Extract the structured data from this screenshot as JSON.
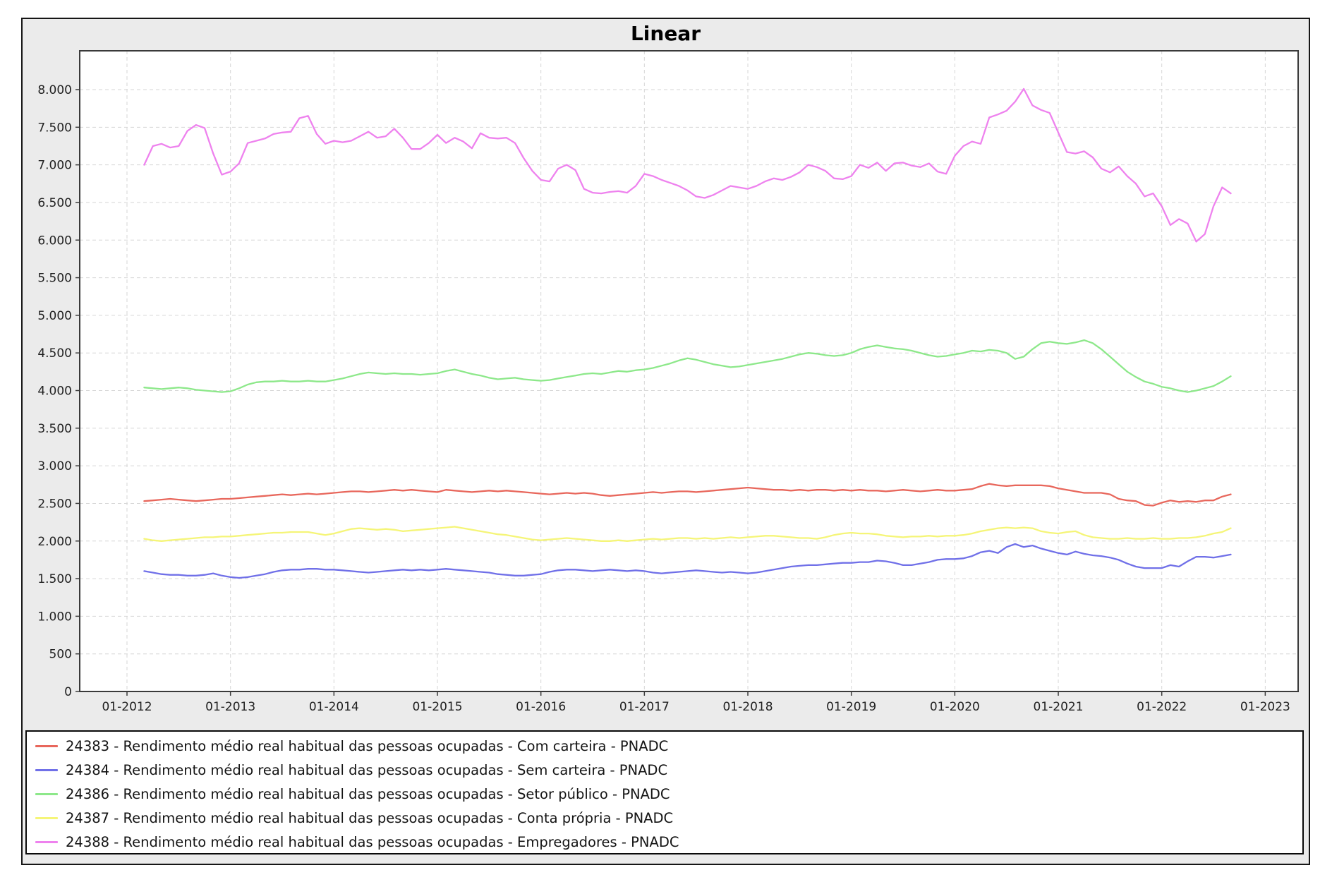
{
  "title": "Linear",
  "colors": {
    "red": "#e8675c",
    "blue": "#7070e8",
    "green": "#8de88a",
    "yellow": "#f5f578",
    "magenta": "#ee82ee",
    "grid": "#d6d6d6",
    "spine": "#3a3a3a",
    "figure_bg": "#ebebeb",
    "plot_bg": "#ffffff",
    "tick_text": "#222222"
  },
  "axes": {
    "y_ticks": [
      {
        "value": 0,
        "label": "0"
      },
      {
        "value": 500,
        "label": "500"
      },
      {
        "value": 1000,
        "label": "1.000"
      },
      {
        "value": 1500,
        "label": "1.500"
      },
      {
        "value": 2000,
        "label": "2.000"
      },
      {
        "value": 2500,
        "label": "2.500"
      },
      {
        "value": 3000,
        "label": "3.000"
      },
      {
        "value": 3500,
        "label": "3.500"
      },
      {
        "value": 4000,
        "label": "4.000"
      },
      {
        "value": 4500,
        "label": "4.500"
      },
      {
        "value": 5000,
        "label": "5.000"
      },
      {
        "value": 5500,
        "label": "5.500"
      },
      {
        "value": 6000,
        "label": "6.000"
      },
      {
        "value": 6500,
        "label": "6.500"
      },
      {
        "value": 7000,
        "label": "7.000"
      },
      {
        "value": 7500,
        "label": "7.500"
      },
      {
        "value": 8000,
        "label": "8.000"
      }
    ],
    "x_ticks": [
      {
        "label": "01-2012"
      },
      {
        "label": "01-2013"
      },
      {
        "label": "01-2014"
      },
      {
        "label": "01-2015"
      },
      {
        "label": "01-2016"
      },
      {
        "label": "01-2017"
      },
      {
        "label": "01-2018"
      },
      {
        "label": "01-2019"
      },
      {
        "label": "01-2020"
      },
      {
        "label": "01-2021"
      },
      {
        "label": "01-2022"
      },
      {
        "label": "01-2023"
      }
    ]
  },
  "legend": {
    "items": [
      {
        "id": "24383",
        "color": "red",
        "label": "24383 - Rendimento médio real habitual das pessoas ocupadas - Com carteira - PNADC"
      },
      {
        "id": "24384",
        "color": "blue",
        "label": "24384 - Rendimento médio real habitual das pessoas ocupadas - Sem carteira - PNADC"
      },
      {
        "id": "24386",
        "color": "green",
        "label": "24386 - Rendimento médio real habitual das pessoas ocupadas - Setor público - PNADC"
      },
      {
        "id": "24387",
        "color": "yellow",
        "label": "24387 - Rendimento médio real habitual das pessoas ocupadas - Conta própria - PNADC"
      },
      {
        "id": "24388",
        "color": "magenta",
        "label": "24388 - Rendimento médio real habitual das pessoas ocupadas - Empregadores - PNADC"
      }
    ]
  },
  "chart_data": {
    "type": "line",
    "title": "Linear",
    "xlabel": "",
    "ylabel": "",
    "ylim": [
      0,
      8500
    ],
    "grid": true,
    "legend_position": "bottom",
    "frequency": "monthly",
    "x": [
      "2012-03",
      "2012-04",
      "2012-05",
      "2012-06",
      "2012-07",
      "2012-08",
      "2012-09",
      "2012-10",
      "2012-11",
      "2012-12",
      "2013-01",
      "2013-02",
      "2013-03",
      "2013-04",
      "2013-05",
      "2013-06",
      "2013-07",
      "2013-08",
      "2013-09",
      "2013-10",
      "2013-11",
      "2013-12",
      "2014-01",
      "2014-02",
      "2014-03",
      "2014-04",
      "2014-05",
      "2014-06",
      "2014-07",
      "2014-08",
      "2014-09",
      "2014-10",
      "2014-11",
      "2014-12",
      "2015-01",
      "2015-02",
      "2015-03",
      "2015-04",
      "2015-05",
      "2015-06",
      "2015-07",
      "2015-08",
      "2015-09",
      "2015-10",
      "2015-11",
      "2015-12",
      "2016-01",
      "2016-02",
      "2016-03",
      "2016-04",
      "2016-05",
      "2016-06",
      "2016-07",
      "2016-08",
      "2016-09",
      "2016-10",
      "2016-11",
      "2016-12",
      "2017-01",
      "2017-02",
      "2017-03",
      "2017-04",
      "2017-05",
      "2017-06",
      "2017-07",
      "2017-08",
      "2017-09",
      "2017-10",
      "2017-11",
      "2017-12",
      "2018-01",
      "2018-02",
      "2018-03",
      "2018-04",
      "2018-05",
      "2018-06",
      "2018-07",
      "2018-08",
      "2018-09",
      "2018-10",
      "2018-11",
      "2018-12",
      "2019-01",
      "2019-02",
      "2019-03",
      "2019-04",
      "2019-05",
      "2019-06",
      "2019-07",
      "2019-08",
      "2019-09",
      "2019-10",
      "2019-11",
      "2019-12",
      "2020-01",
      "2020-02",
      "2020-03",
      "2020-04",
      "2020-05",
      "2020-06",
      "2020-07",
      "2020-08",
      "2020-09",
      "2020-10",
      "2020-11",
      "2020-12",
      "2021-01",
      "2021-02",
      "2021-03",
      "2021-04",
      "2021-05",
      "2021-06",
      "2021-07",
      "2021-08",
      "2021-09",
      "2021-10",
      "2021-11",
      "2021-12",
      "2022-01",
      "2022-02",
      "2022-03",
      "2022-04",
      "2022-05",
      "2022-06",
      "2022-07",
      "2022-08",
      "2022-09"
    ],
    "series": [
      {
        "name": "24383 - Com carteira",
        "color": "red",
        "values": [
          2530,
          2540,
          2550,
          2560,
          2550,
          2540,
          2530,
          2540,
          2550,
          2560,
          2560,
          2570,
          2580,
          2590,
          2600,
          2610,
          2620,
          2610,
          2620,
          2630,
          2620,
          2630,
          2640,
          2650,
          2660,
          2660,
          2650,
          2660,
          2670,
          2680,
          2670,
          2680,
          2670,
          2660,
          2650,
          2680,
          2670,
          2660,
          2650,
          2660,
          2670,
          2660,
          2670,
          2660,
          2650,
          2640,
          2630,
          2620,
          2630,
          2640,
          2630,
          2640,
          2630,
          2610,
          2600,
          2610,
          2620,
          2630,
          2640,
          2650,
          2640,
          2650,
          2660,
          2660,
          2650,
          2660,
          2670,
          2680,
          2690,
          2700,
          2710,
          2700,
          2690,
          2680,
          2680,
          2670,
          2680,
          2670,
          2680,
          2680,
          2670,
          2680,
          2670,
          2680,
          2670,
          2670,
          2660,
          2670,
          2680,
          2670,
          2660,
          2670,
          2680,
          2670,
          2670,
          2680,
          2690,
          2730,
          2760,
          2740,
          2730,
          2740,
          2740,
          2740,
          2740,
          2730,
          2700,
          2680,
          2660,
          2640,
          2640,
          2640,
          2620,
          2560,
          2540,
          2530,
          2480,
          2470,
          2510,
          2540,
          2520,
          2530,
          2520,
          2540,
          2540,
          2590,
          2620
        ]
      },
      {
        "name": "24384 - Sem carteira",
        "color": "blue",
        "values": [
          1600,
          1580,
          1560,
          1550,
          1550,
          1540,
          1540,
          1550,
          1570,
          1540,
          1520,
          1510,
          1520,
          1540,
          1560,
          1590,
          1610,
          1620,
          1620,
          1630,
          1630,
          1620,
          1620,
          1610,
          1600,
          1590,
          1580,
          1590,
          1600,
          1610,
          1620,
          1610,
          1620,
          1610,
          1620,
          1630,
          1620,
          1610,
          1600,
          1590,
          1580,
          1560,
          1550,
          1540,
          1540,
          1550,
          1560,
          1590,
          1610,
          1620,
          1620,
          1610,
          1600,
          1610,
          1620,
          1610,
          1600,
          1610,
          1600,
          1580,
          1570,
          1580,
          1590,
          1600,
          1610,
          1600,
          1590,
          1580,
          1590,
          1580,
          1570,
          1580,
          1600,
          1620,
          1640,
          1660,
          1670,
          1680,
          1680,
          1690,
          1700,
          1710,
          1710,
          1720,
          1720,
          1740,
          1730,
          1710,
          1680,
          1680,
          1700,
          1720,
          1750,
          1760,
          1760,
          1770,
          1800,
          1850,
          1870,
          1840,
          1920,
          1960,
          1920,
          1940,
          1900,
          1870,
          1840,
          1820,
          1860,
          1830,
          1810,
          1800,
          1780,
          1750,
          1700,
          1660,
          1640,
          1640,
          1640,
          1680,
          1660,
          1730,
          1790,
          1790,
          1780,
          1800,
          1820
        ]
      },
      {
        "name": "24386 - Setor público",
        "color": "green",
        "values": [
          4040,
          4030,
          4020,
          4030,
          4040,
          4030,
          4010,
          4000,
          3990,
          3980,
          3990,
          4030,
          4080,
          4110,
          4120,
          4120,
          4130,
          4120,
          4120,
          4130,
          4120,
          4120,
          4140,
          4160,
          4190,
          4220,
          4240,
          4230,
          4220,
          4230,
          4220,
          4220,
          4210,
          4220,
          4230,
          4260,
          4280,
          4250,
          4220,
          4200,
          4170,
          4150,
          4160,
          4170,
          4150,
          4140,
          4130,
          4140,
          4160,
          4180,
          4200,
          4220,
          4230,
          4220,
          4240,
          4260,
          4250,
          4270,
          4280,
          4300,
          4330,
          4360,
          4400,
          4430,
          4410,
          4380,
          4350,
          4330,
          4310,
          4320,
          4340,
          4360,
          4380,
          4400,
          4420,
          4450,
          4480,
          4500,
          4490,
          4470,
          4460,
          4470,
          4500,
          4550,
          4580,
          4600,
          4580,
          4560,
          4550,
          4530,
          4500,
          4470,
          4450,
          4460,
          4480,
          4500,
          4530,
          4520,
          4540,
          4530,
          4500,
          4420,
          4450,
          4550,
          4630,
          4650,
          4630,
          4620,
          4640,
          4670,
          4630,
          4550,
          4450,
          4350,
          4250,
          4180,
          4120,
          4090,
          4050,
          4030,
          4000,
          3980,
          4000,
          4030,
          4060,
          4120,
          4190
        ]
      },
      {
        "name": "24387 - Conta própria",
        "color": "yellow",
        "values": [
          2030,
          2010,
          2000,
          2010,
          2020,
          2030,
          2040,
          2050,
          2050,
          2060,
          2060,
          2070,
          2080,
          2090,
          2100,
          2110,
          2110,
          2120,
          2120,
          2120,
          2100,
          2080,
          2100,
          2130,
          2160,
          2170,
          2160,
          2150,
          2160,
          2150,
          2130,
          2140,
          2150,
          2160,
          2170,
          2180,
          2190,
          2170,
          2150,
          2130,
          2110,
          2090,
          2080,
          2060,
          2040,
          2020,
          2010,
          2020,
          2030,
          2040,
          2030,
          2020,
          2010,
          2000,
          2000,
          2010,
          2000,
          2010,
          2020,
          2030,
          2020,
          2030,
          2040,
          2040,
          2030,
          2040,
          2030,
          2040,
          2050,
          2040,
          2050,
          2060,
          2070,
          2070,
          2060,
          2050,
          2040,
          2040,
          2030,
          2050,
          2080,
          2100,
          2110,
          2100,
          2100,
          2090,
          2070,
          2060,
          2050,
          2060,
          2060,
          2070,
          2060,
          2070,
          2070,
          2080,
          2100,
          2130,
          2150,
          2170,
          2180,
          2170,
          2180,
          2170,
          2130,
          2110,
          2100,
          2120,
          2130,
          2080,
          2050,
          2040,
          2030,
          2030,
          2040,
          2030,
          2030,
          2040,
          2030,
          2030,
          2040,
          2040,
          2050,
          2070,
          2100,
          2120,
          2170
        ]
      },
      {
        "name": "24388 - Empregadores",
        "color": "magenta",
        "values": [
          7000,
          7250,
          7280,
          7230,
          7250,
          7450,
          7530,
          7490,
          7150,
          6870,
          6910,
          7020,
          7290,
          7320,
          7350,
          7410,
          7430,
          7440,
          7620,
          7650,
          7410,
          7280,
          7320,
          7300,
          7320,
          7380,
          7440,
          7360,
          7380,
          7480,
          7360,
          7210,
          7210,
          7290,
          7400,
          7290,
          7360,
          7310,
          7220,
          7420,
          7360,
          7350,
          7360,
          7290,
          7090,
          6920,
          6800,
          6780,
          6950,
          7000,
          6930,
          6680,
          6630,
          6620,
          6640,
          6650,
          6630,
          6720,
          6880,
          6850,
          6800,
          6760,
          6720,
          6660,
          6580,
          6560,
          6600,
          6660,
          6720,
          6700,
          6680,
          6720,
          6780,
          6820,
          6800,
          6840,
          6900,
          7000,
          6970,
          6920,
          6820,
          6810,
          6850,
          7000,
          6960,
          7030,
          6920,
          7020,
          7030,
          6990,
          6970,
          7020,
          6910,
          6880,
          7120,
          7250,
          7310,
          7280,
          7630,
          7670,
          7720,
          7840,
          8010,
          7790,
          7730,
          7690,
          7430,
          7170,
          7150,
          7180,
          7100,
          6950,
          6900,
          6980,
          6850,
          6750,
          6580,
          6620,
          6450,
          6200,
          6280,
          6220,
          5980,
          6080,
          6450,
          6700,
          6620
        ]
      }
    ]
  }
}
